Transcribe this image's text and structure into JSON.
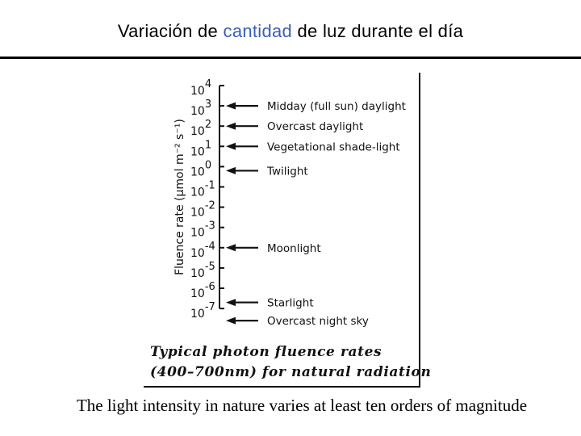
{
  "slide": {
    "title_parts": [
      "Variación de ",
      "cantidad",
      " de luz durante el día"
    ],
    "caption": "The light intensity in nature varies at least ten orders of magnitude"
  },
  "figure": {
    "axis_title": "Fluence rate (μmol m⁻² s⁻¹)",
    "ticks": [
      {
        "base": "10",
        "exp": "4"
      },
      {
        "base": "10",
        "exp": "3"
      },
      {
        "base": "10",
        "exp": "2"
      },
      {
        "base": "10",
        "exp": "1"
      },
      {
        "base": "10",
        "exp": "0"
      },
      {
        "base": "10",
        "exp": "-1"
      },
      {
        "base": "10",
        "exp": "-2"
      },
      {
        "base": "10",
        "exp": "-3"
      },
      {
        "base": "10",
        "exp": "-4"
      },
      {
        "base": "10",
        "exp": "-5"
      },
      {
        "base": "10",
        "exp": "-6"
      },
      {
        "base": "10",
        "exp": "-7"
      }
    ],
    "annotations": [
      {
        "label": "Midday (full sun) daylight",
        "log_value": 3.0
      },
      {
        "label": "Overcast  daylight",
        "log_value": 2.0
      },
      {
        "label": "Vegetational  shade-light",
        "log_value": 1.0
      },
      {
        "label": "Twilight",
        "log_value": -0.2
      },
      {
        "label": "Moonlight",
        "log_value": -4.0
      },
      {
        "label": "Starlight",
        "log_value": -6.7
      },
      {
        "label": "Overcast  night sky",
        "log_value": -7.6
      }
    ],
    "caption_line1": "Typical photon fluence rates",
    "caption_line2": "(400–700nm) for natural radiation"
  }
}
